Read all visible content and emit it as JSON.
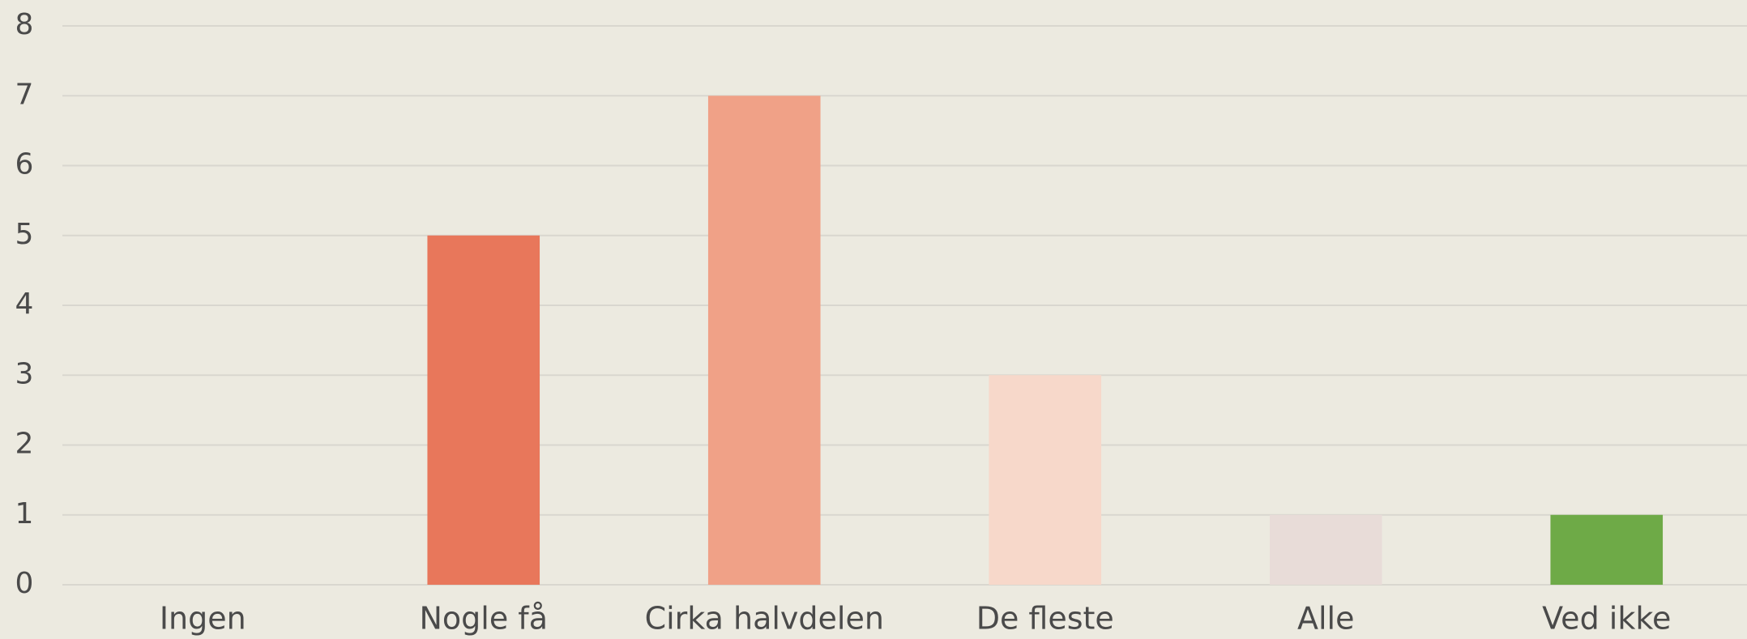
{
  "chart_data": {
    "type": "bar",
    "categories": [
      "Ingen",
      "Nogle få",
      "Cirka halvdelen",
      "De fleste",
      "Alle",
      "Ved ikke"
    ],
    "values": [
      0,
      5,
      7,
      3,
      1,
      1
    ],
    "colors": [
      null,
      "#e8775b",
      "#f0a187",
      "#f7d8ca",
      "#e8dcd8",
      "#6eaa47"
    ],
    "ylim": [
      0,
      8
    ],
    "yticks": [
      0,
      1,
      2,
      3,
      4,
      5,
      6,
      7,
      8
    ],
    "grid": true
  }
}
